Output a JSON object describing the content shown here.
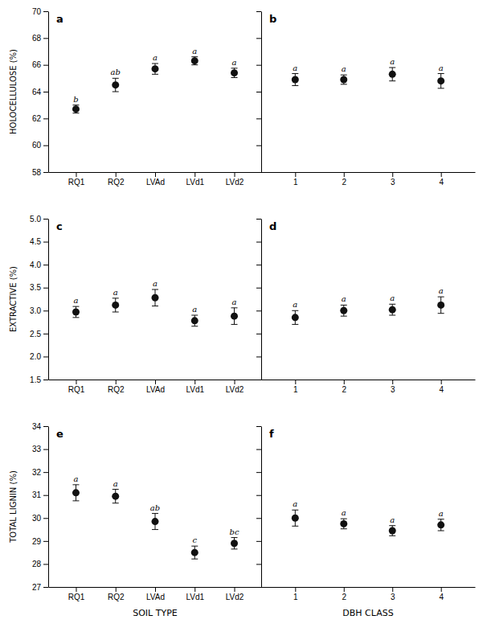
{
  "chart_data": [
    {
      "type": "errorbar",
      "title": "a",
      "categories": [
        "RQ1",
        "RQ2",
        "LVAd",
        "LVd1",
        "LVd2"
      ],
      "values": [
        62.7,
        64.5,
        65.7,
        66.3,
        65.4
      ],
      "errors": [
        0.3,
        0.5,
        0.4,
        0.3,
        0.35
      ],
      "annotations": [
        "b",
        "ab",
        "a",
        "a",
        "a"
      ],
      "ylabel": "HOLOCELLULOSE (%)",
      "ylim": [
        58,
        70
      ],
      "yticks": [
        58,
        60,
        62,
        64,
        66,
        68,
        70
      ],
      "color": "#111111",
      "grid": false
    },
    {
      "type": "errorbar",
      "title": "b",
      "categories": [
        "1",
        "2",
        "3",
        "4"
      ],
      "values": [
        64.9,
        64.9,
        65.3,
        64.8
      ],
      "errors": [
        0.45,
        0.35,
        0.5,
        0.55
      ],
      "annotations": [
        "a",
        "a",
        "a",
        "a"
      ],
      "ylim": [
        58,
        70
      ],
      "yticks": [
        58,
        60,
        62,
        64,
        66,
        68,
        70
      ],
      "tick_labels": "x",
      "color": "#111111",
      "grid": false
    },
    {
      "type": "errorbar",
      "title": "c",
      "categories": [
        "RQ1",
        "RQ2",
        "LVAd",
        "LVd1",
        "LVd2"
      ],
      "values": [
        2.97,
        3.12,
        3.28,
        2.78,
        2.88
      ],
      "errors": [
        0.12,
        0.15,
        0.18,
        0.12,
        0.18
      ],
      "annotations": [
        "a",
        "a",
        "a",
        "a",
        "a"
      ],
      "ylabel": "EXTRACTIVE (%)",
      "ylim": [
        1.5,
        5.0
      ],
      "yticks": [
        1.5,
        {
          "value": 2.0,
          "label": "2.0"
        },
        2.5,
        {
          "value": 3.0,
          "label": "3.0"
        },
        3.5,
        {
          "value": 4.0,
          "label": "4.0"
        },
        4.5,
        {
          "value": 5.0,
          "label": "5.0"
        }
      ],
      "color": "#111111",
      "grid": false
    },
    {
      "type": "errorbar",
      "title": "d",
      "categories": [
        "1",
        "2",
        "3",
        "4"
      ],
      "values": [
        2.85,
        3.0,
        3.02,
        3.12
      ],
      "errors": [
        0.15,
        0.12,
        0.12,
        0.18
      ],
      "annotations": [
        "a",
        "a",
        "a",
        "a"
      ],
      "ylim": [
        1.5,
        5.0
      ],
      "yticks": [
        1.5,
        2.0,
        2.5,
        3.0,
        3.5,
        4.0,
        4.5,
        5.0
      ],
      "tick_labels": "x",
      "color": "#111111",
      "grid": false
    },
    {
      "type": "errorbar",
      "title": "e",
      "categories": [
        "RQ1",
        "RQ2",
        "LVAd",
        "LVd1",
        "LVd2"
      ],
      "values": [
        31.1,
        30.95,
        29.85,
        28.5,
        28.9
      ],
      "errors": [
        0.35,
        0.3,
        0.35,
        0.28,
        0.25
      ],
      "annotations": [
        "a",
        "a",
        "ab",
        "c",
        "bc"
      ],
      "ylabel": "TOTAL LIGNIN (%)",
      "xlabel": "SOIL TYPE",
      "ylim": [
        27,
        34
      ],
      "yticks": [
        27,
        28,
        29,
        30,
        31,
        32,
        33,
        34
      ],
      "color": "#111111",
      "grid": false
    },
    {
      "type": "errorbar",
      "title": "f",
      "categories": [
        "1",
        "2",
        "3",
        "4"
      ],
      "values": [
        30.0,
        29.75,
        29.45,
        29.7
      ],
      "errors": [
        0.35,
        0.22,
        0.22,
        0.25
      ],
      "annotations": [
        "a",
        "a",
        "a",
        "a"
      ],
      "xlabel": "DBH CLASS",
      "ylim": [
        27,
        34
      ],
      "yticks": [
        27,
        28,
        29,
        30,
        31,
        32,
        33,
        34
      ],
      "tick_labels": "x",
      "color": "#111111",
      "grid": false
    }
  ]
}
